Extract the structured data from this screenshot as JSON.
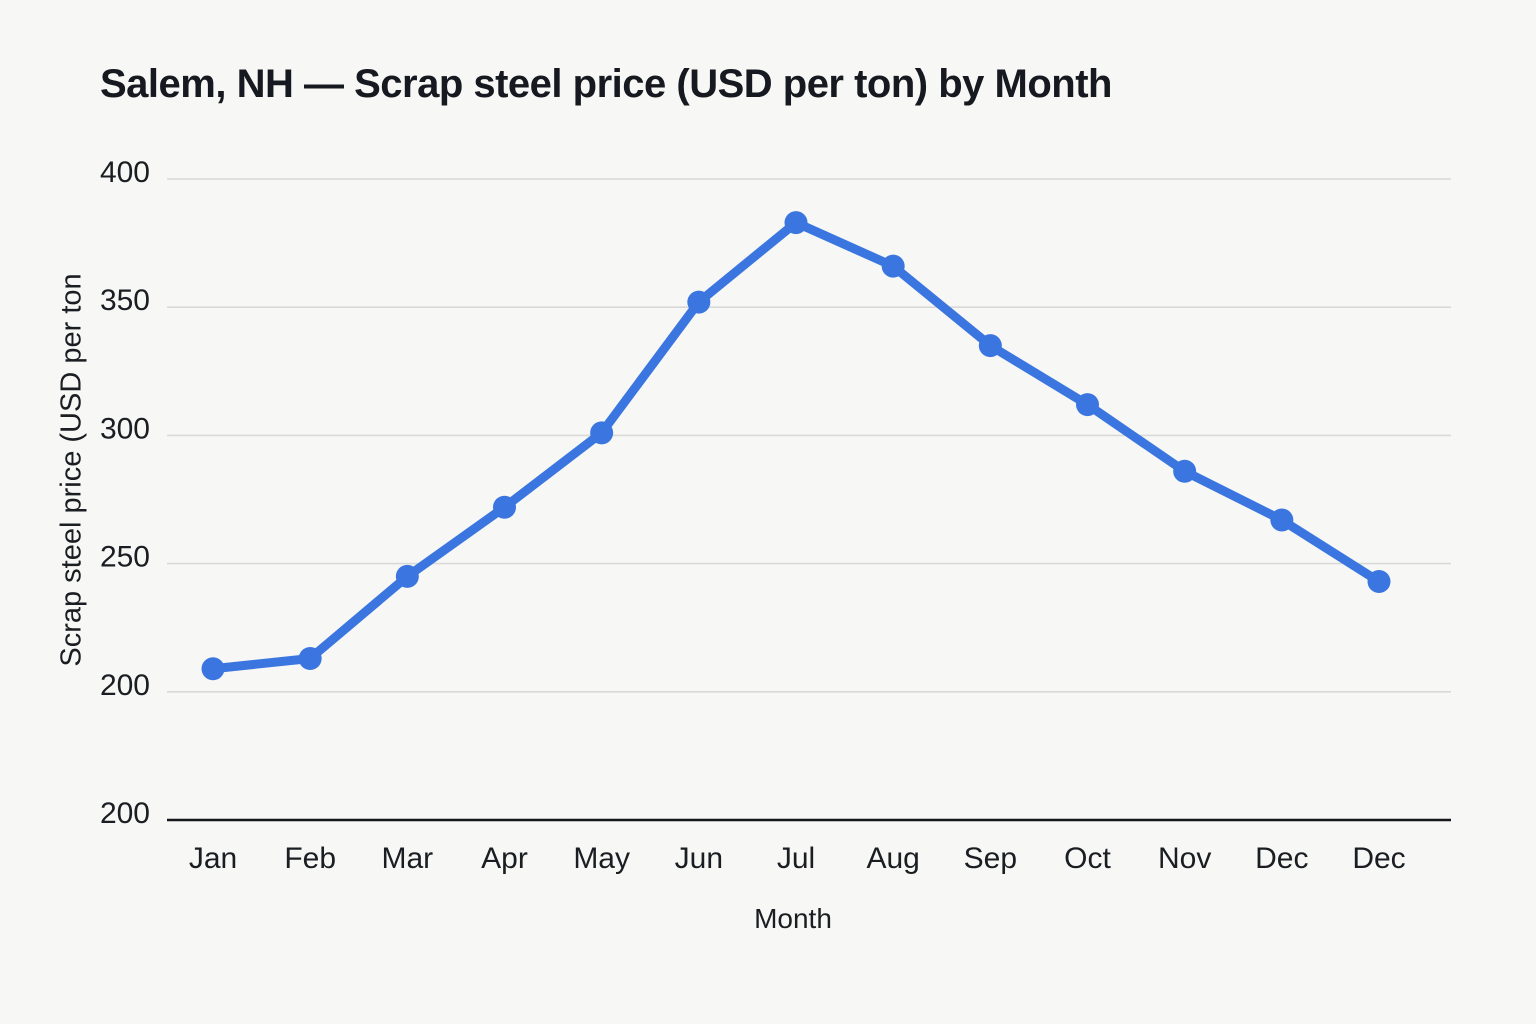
{
  "page_title": "Salem, NH — Scrap steel price (USD per ton) by Month",
  "chart_data": {
    "type": "line",
    "title": "Salem, NH — Scrap steel price (USD per ton) by Month",
    "xlabel": "Month",
    "ylabel": "Scrap steel price (USD per ton",
    "categories": [
      "Jan",
      "Feb",
      "Mar",
      "Apr",
      "May",
      "Jun",
      "Jul",
      "Aug",
      "Sep",
      "Oct",
      "Nov",
      "Dec",
      "Dec"
    ],
    "values": [
      209,
      213,
      245,
      272,
      301,
      352,
      383,
      366,
      335,
      312,
      286,
      267,
      243
    ],
    "yticks_top_to_bottom": [
      400,
      350,
      300,
      250,
      200,
      200
    ],
    "ylim": [
      200,
      400
    ],
    "grid": true,
    "legend": false,
    "marker": "circle",
    "colors": {
      "line": "#3b76e0",
      "marker": "#3b76e0",
      "grid": "#d9d9d9",
      "axis": "#14171a",
      "text": "#1a1d21",
      "background": "#f7f7f5"
    }
  }
}
